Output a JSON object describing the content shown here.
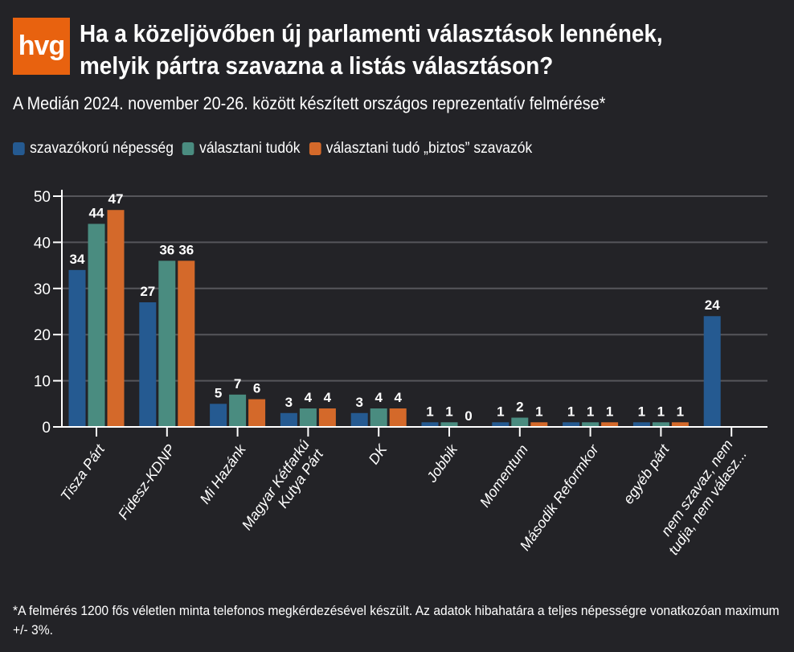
{
  "logo": {
    "text": "hvg",
    "color": "#e8620f"
  },
  "header": {
    "title_line1": "Ha a közeljövőben új parlamenti választások lennének,",
    "title_line2": "melyik pártra szavazna a listás választáson?",
    "subtitle": "A Medián 2024. november 20-26. között készített országos reprezentatív felmérése*"
  },
  "footnote": "*A felmérés 1200 fős véletlen minta telefonos megkérdezésével készült. Az adatok hibahatára a teljes népességre vonatkozóan maximum +/- 3%.",
  "chart_data": {
    "type": "bar",
    "ylim": [
      0,
      50
    ],
    "yticks": [
      0,
      10,
      20,
      30,
      40,
      50
    ],
    "grid": true,
    "legend_placement": "top-left",
    "categories": [
      [
        "Tisza Párt"
      ],
      [
        "Fidesz-KDNP"
      ],
      [
        "Mi Hazánk"
      ],
      [
        "Magyar Kétfarkú",
        "Kutya Párt"
      ],
      [
        "DK"
      ],
      [
        "Jobbik"
      ],
      [
        "Momentum"
      ],
      [
        "Második Reformkor"
      ],
      [
        "egyéb párt"
      ],
      [
        "nem szavaz, nem",
        "tudja, nem válasz..."
      ]
    ],
    "series": [
      {
        "name": "szavazókorú népesség",
        "color": "#255a91",
        "values": [
          34,
          27,
          5,
          3,
          3,
          1,
          1,
          1,
          1,
          24
        ]
      },
      {
        "name": "választani tudók",
        "color": "#4a8c80",
        "values": [
          44,
          36,
          7,
          4,
          4,
          1,
          2,
          1,
          1,
          null
        ]
      },
      {
        "name": "választani tudó „biztos” szavazók",
        "color": "#d4692a",
        "values": [
          47,
          36,
          6,
          4,
          4,
          0,
          1,
          1,
          1,
          null
        ]
      }
    ]
  }
}
